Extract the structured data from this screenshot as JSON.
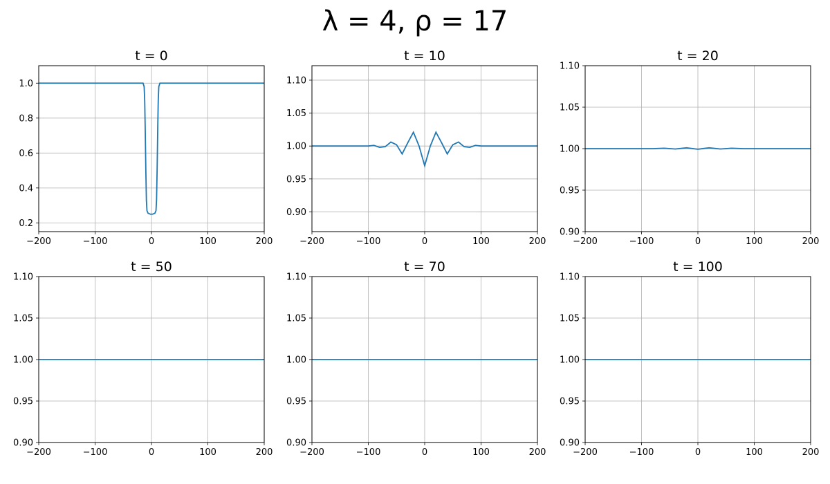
{
  "figure": {
    "suptitle": "λ = 4, ρ = 17",
    "line_color": "#1f77b4",
    "grid": true
  },
  "chart_data": [
    {
      "type": "line",
      "title": "t = 0",
      "xlim": [
        -200,
        200
      ],
      "ylim": [
        0.15,
        1.1
      ],
      "xticks": [
        -200,
        -100,
        0,
        100,
        200
      ],
      "xtick_labels": [
        "−200",
        "−100",
        "0",
        "100",
        "200"
      ],
      "yticks": [
        0.2,
        0.4,
        0.6,
        0.8,
        1.0
      ],
      "ytick_labels": [
        "0.2",
        "0.4",
        "0.6",
        "0.8",
        "1.0"
      ],
      "series": [
        {
          "x": [
            -200,
            -15,
            -13,
            -12,
            -11,
            -10,
            -9,
            -8,
            -6,
            -2,
            2,
            6,
            8,
            9,
            10,
            11,
            12,
            13,
            15,
            200
          ],
          "y": [
            1.0,
            1.0,
            0.98,
            0.9,
            0.72,
            0.5,
            0.33,
            0.27,
            0.255,
            0.25,
            0.25,
            0.255,
            0.27,
            0.33,
            0.5,
            0.72,
            0.9,
            0.98,
            1.0,
            1.0
          ]
        }
      ]
    },
    {
      "type": "line",
      "title": "t = 10",
      "xlim": [
        -200,
        200
      ],
      "ylim": [
        0.87,
        1.122
      ],
      "xticks": [
        -200,
        -100,
        0,
        100,
        200
      ],
      "xtick_labels": [
        "−200",
        "−100",
        "0",
        "100",
        "200"
      ],
      "yticks": [
        0.9,
        0.95,
        1.0,
        1.05,
        1.1
      ],
      "ytick_labels": [
        "0.90",
        "0.95",
        "1.00",
        "1.05",
        "1.10"
      ],
      "series": [
        {
          "x": [
            -200,
            -110,
            -100,
            -90,
            -80,
            -70,
            -60,
            -50,
            -40,
            -30,
            -20,
            -10,
            0,
            10,
            20,
            30,
            40,
            50,
            60,
            70,
            80,
            90,
            100,
            110,
            200
          ],
          "y": [
            1.0,
            1.0,
            1.0,
            1.001,
            0.998,
            0.999,
            1.006,
            1.002,
            0.988,
            1.005,
            1.021,
            1.0,
            0.97,
            1.0,
            1.021,
            1.005,
            0.988,
            1.002,
            1.006,
            0.999,
            0.998,
            1.001,
            1.0,
            1.0,
            1.0
          ]
        }
      ]
    },
    {
      "type": "line",
      "title": "t = 20",
      "xlim": [
        -200,
        200
      ],
      "ylim": [
        0.9,
        1.1
      ],
      "xticks": [
        -200,
        -100,
        0,
        100,
        200
      ],
      "xtick_labels": [
        "−200",
        "−100",
        "0",
        "100",
        "200"
      ],
      "yticks": [
        0.9,
        0.95,
        1.0,
        1.05,
        1.1
      ],
      "ytick_labels": [
        "0.90",
        "0.95",
        "1.00",
        "1.05",
        "1.10"
      ],
      "series": [
        {
          "x": [
            -200,
            -80,
            -60,
            -40,
            -20,
            0,
            20,
            40,
            60,
            80,
            200
          ],
          "y": [
            1.0,
            1.0,
            1.0005,
            0.9996,
            1.001,
            0.9993,
            1.001,
            0.9996,
            1.0005,
            1.0,
            1.0
          ]
        }
      ]
    },
    {
      "type": "line",
      "title": "t = 50",
      "xlim": [
        -200,
        200
      ],
      "ylim": [
        0.9,
        1.1
      ],
      "xticks": [
        -200,
        -100,
        0,
        100,
        200
      ],
      "xtick_labels": [
        "−200",
        "−100",
        "0",
        "100",
        "200"
      ],
      "yticks": [
        0.9,
        0.95,
        1.0,
        1.05,
        1.1
      ],
      "ytick_labels": [
        "0.90",
        "0.95",
        "1.00",
        "1.05",
        "1.10"
      ],
      "series": [
        {
          "x": [
            -200,
            200
          ],
          "y": [
            1.0,
            1.0
          ]
        }
      ]
    },
    {
      "type": "line",
      "title": "t = 70",
      "xlim": [
        -200,
        200
      ],
      "ylim": [
        0.9,
        1.1
      ],
      "xticks": [
        -200,
        -100,
        0,
        100,
        200
      ],
      "xtick_labels": [
        "−200",
        "−100",
        "0",
        "100",
        "200"
      ],
      "yticks": [
        0.9,
        0.95,
        1.0,
        1.05,
        1.1
      ],
      "ytick_labels": [
        "0.90",
        "0.95",
        "1.00",
        "1.05",
        "1.10"
      ],
      "series": [
        {
          "x": [
            -200,
            200
          ],
          "y": [
            1.0,
            1.0
          ]
        }
      ]
    },
    {
      "type": "line",
      "title": "t = 100",
      "xlim": [
        -200,
        200
      ],
      "ylim": [
        0.9,
        1.1
      ],
      "xticks": [
        -200,
        -100,
        0,
        100,
        200
      ],
      "xtick_labels": [
        "−200",
        "−100",
        "0",
        "100",
        "200"
      ],
      "yticks": [
        0.9,
        0.95,
        1.0,
        1.05,
        1.1
      ],
      "ytick_labels": [
        "0.90",
        "0.95",
        "1.00",
        "1.05",
        "1.10"
      ],
      "series": [
        {
          "x": [
            -200,
            200
          ],
          "y": [
            1.0,
            1.0
          ]
        }
      ]
    }
  ]
}
